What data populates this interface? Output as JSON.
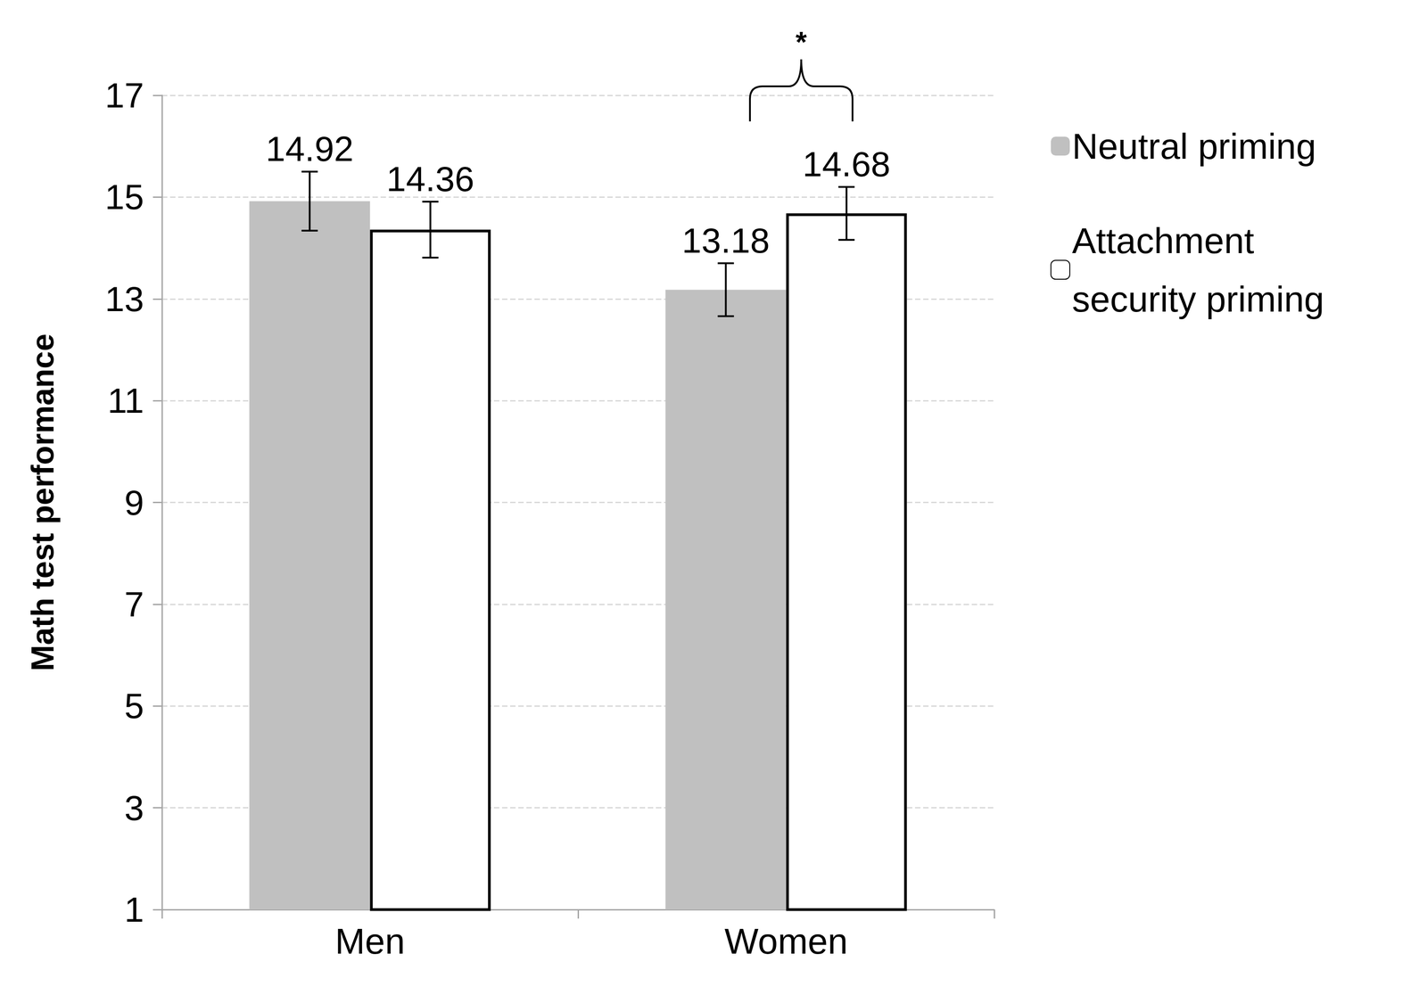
{
  "chart_data": {
    "type": "bar",
    "categories": [
      "Men",
      "Women"
    ],
    "series": [
      {
        "name": "Neutral priming",
        "color": "#c0c0c0",
        "values": [
          14.92,
          13.18
        ],
        "errors": [
          0.58,
          0.52
        ]
      },
      {
        "name": "Attachment security priming",
        "color": "#ffffff",
        "values": [
          14.36,
          14.68
        ],
        "errors": [
          0.55,
          0.52
        ]
      }
    ],
    "y_label": "Math test performance",
    "ylim": [
      1,
      17
    ],
    "yticks": [
      1,
      3,
      5,
      7,
      9,
      11,
      13,
      15,
      17
    ],
    "grid": true,
    "legend": "right",
    "data_labels": true,
    "annotations": [
      {
        "text": "*",
        "category": "Women"
      }
    ]
  }
}
